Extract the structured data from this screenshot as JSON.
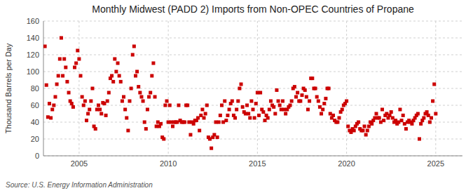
{
  "chart_data": {
    "type": "scatter",
    "title": "Monthly Midwest (PADD 2) Imports from Non-OPEC Countries of Propane",
    "ylabel": "Thousand Barrels per Day",
    "annotations": [
      "Source: U.S. Energy Information Administration"
    ],
    "color": "#cc0000",
    "marker": "square",
    "grid": true,
    "xlim": [
      2003.0,
      2026.5
    ],
    "ylim": [
      0,
      160
    ],
    "xticks": [
      2005,
      2010,
      2015,
      2020,
      2025
    ],
    "yticks": [
      0,
      20,
      40,
      60,
      80,
      100,
      120,
      140,
      160
    ],
    "x": [
      2003.083,
      2003.167,
      2003.25,
      2003.333,
      2003.417,
      2003.5,
      2003.583,
      2003.667,
      2003.75,
      2003.833,
      2003.917,
      2004.0,
      2004.083,
      2004.167,
      2004.25,
      2004.333,
      2004.417,
      2004.5,
      2004.583,
      2004.667,
      2004.75,
      2004.833,
      2004.917,
      2005.0,
      2005.083,
      2005.167,
      2005.25,
      2005.333,
      2005.417,
      2005.5,
      2005.583,
      2005.667,
      2005.75,
      2005.833,
      2005.917,
      2006.0,
      2006.083,
      2006.167,
      2006.25,
      2006.333,
      2006.417,
      2006.5,
      2006.583,
      2006.667,
      2006.75,
      2006.833,
      2006.917,
      2007.0,
      2007.083,
      2007.167,
      2007.25,
      2007.333,
      2007.417,
      2007.5,
      2007.583,
      2007.667,
      2007.75,
      2007.833,
      2007.917,
      2008.0,
      2008.083,
      2008.167,
      2008.25,
      2008.333,
      2008.417,
      2008.5,
      2008.583,
      2008.667,
      2008.75,
      2008.833,
      2008.917,
      2009.0,
      2009.083,
      2009.167,
      2009.25,
      2009.333,
      2009.417,
      2009.5,
      2009.583,
      2009.667,
      2009.75,
      2009.833,
      2009.917,
      2010.0,
      2010.083,
      2010.167,
      2010.25,
      2010.333,
      2010.417,
      2010.5,
      2010.583,
      2010.667,
      2010.75,
      2010.833,
      2010.917,
      2011.0,
      2011.083,
      2011.167,
      2011.25,
      2011.333,
      2011.417,
      2011.5,
      2011.583,
      2011.667,
      2011.75,
      2011.833,
      2011.917,
      2012.0,
      2012.083,
      2012.167,
      2012.25,
      2012.333,
      2012.417,
      2012.5,
      2012.583,
      2012.667,
      2012.75,
      2012.833,
      2012.917,
      2013.0,
      2013.083,
      2013.167,
      2013.25,
      2013.333,
      2013.417,
      2013.5,
      2013.583,
      2013.667,
      2013.75,
      2013.833,
      2013.917,
      2014.0,
      2014.083,
      2014.167,
      2014.25,
      2014.333,
      2014.417,
      2014.5,
      2014.583,
      2014.667,
      2014.75,
      2014.833,
      2014.917,
      2015.0,
      2015.083,
      2015.167,
      2015.25,
      2015.333,
      2015.417,
      2015.5,
      2015.583,
      2015.667,
      2015.75,
      2015.833,
      2015.917,
      2016.0,
      2016.083,
      2016.167,
      2016.25,
      2016.333,
      2016.417,
      2016.5,
      2016.583,
      2016.667,
      2016.75,
      2016.833,
      2016.917,
      2017.0,
      2017.083,
      2017.167,
      2017.25,
      2017.333,
      2017.417,
      2017.5,
      2017.583,
      2017.667,
      2017.75,
      2017.833,
      2017.917,
      2018.0,
      2018.083,
      2018.167,
      2018.25,
      2018.333,
      2018.417,
      2018.5,
      2018.583,
      2018.667,
      2018.75,
      2018.833,
      2018.917,
      2019.0,
      2019.083,
      2019.167,
      2019.25,
      2019.333,
      2019.417,
      2019.5,
      2019.583,
      2019.667,
      2019.75,
      2019.833,
      2019.917,
      2020.0,
      2020.083,
      2020.167,
      2020.25,
      2020.333,
      2020.417,
      2020.5,
      2020.583,
      2020.667,
      2020.75,
      2020.833,
      2020.917,
      2021.0,
      2021.083,
      2021.167,
      2021.25,
      2021.333,
      2021.417,
      2021.5,
      2021.583,
      2021.667,
      2021.75,
      2021.833,
      2021.917,
      2022.0,
      2022.083,
      2022.167,
      2022.25,
      2022.333,
      2022.417,
      2022.5,
      2022.583,
      2022.667,
      2022.75,
      2022.833,
      2022.917,
      2023.0,
      2023.083,
      2023.167,
      2023.25,
      2023.333,
      2023.417,
      2023.5,
      2023.583,
      2023.667,
      2023.75,
      2023.833,
      2023.917,
      2024.0,
      2024.083,
      2024.167,
      2024.25,
      2024.333,
      2024.417,
      2024.5,
      2024.583,
      2024.667,
      2024.75,
      2024.833,
      2024.917,
      2025.0
    ],
    "values": [
      130,
      84,
      46,
      62,
      45,
      55,
      60,
      70,
      85,
      95,
      115,
      140,
      95,
      115,
      105,
      88,
      75,
      65,
      62,
      58,
      105,
      110,
      125,
      115,
      95,
      70,
      60,
      65,
      42,
      50,
      55,
      65,
      80,
      35,
      32,
      55,
      60,
      55,
      50,
      63,
      62,
      48,
      65,
      75,
      92,
      95,
      88,
      115,
      100,
      110,
      95,
      88,
      65,
      70,
      55,
      45,
      30,
      65,
      80,
      120,
      130,
      95,
      100,
      82,
      75,
      70,
      65,
      40,
      32,
      55,
      70,
      75,
      95,
      110,
      70,
      35,
      40,
      35,
      38,
      22,
      20,
      60,
      65,
      40,
      60,
      40,
      35,
      40,
      40,
      40,
      60,
      42,
      40,
      40,
      40,
      60,
      60,
      40,
      25,
      40,
      38,
      42,
      42,
      45,
      30,
      48,
      55,
      45,
      50,
      60,
      22,
      20,
      9,
      22,
      25,
      40,
      22,
      40,
      48,
      60,
      40,
      65,
      42,
      48,
      55,
      62,
      65,
      48,
      45,
      55,
      65,
      80,
      85,
      58,
      52,
      50,
      60,
      50,
      45,
      65,
      55,
      45,
      62,
      75,
      48,
      75,
      55,
      52,
      42,
      48,
      45,
      55,
      65,
      60,
      58,
      50,
      78,
      65,
      60,
      55,
      65,
      55,
      50,
      55,
      58,
      60,
      65,
      80,
      82,
      70,
      75,
      65,
      65,
      72,
      80,
      78,
      70,
      55,
      65,
      92,
      92,
      80,
      80,
      70,
      65,
      58,
      50,
      55,
      62,
      68,
      80,
      80,
      50,
      45,
      48,
      42,
      40,
      40,
      45,
      52,
      55,
      60,
      62,
      65,
      35,
      30,
      28,
      32,
      30,
      35,
      38,
      40,
      32,
      30,
      30,
      35,
      25,
      30,
      35,
      40,
      38,
      42,
      45,
      50,
      45,
      45,
      40,
      55,
      42,
      48,
      50,
      45,
      48,
      52,
      45,
      40,
      42,
      38,
      40,
      55,
      42,
      48,
      38,
      32,
      40,
      42,
      40,
      38,
      42,
      45,
      48,
      50,
      20,
      38,
      42,
      45,
      50,
      52,
      48,
      40,
      45,
      65,
      85,
      50
    ]
  }
}
